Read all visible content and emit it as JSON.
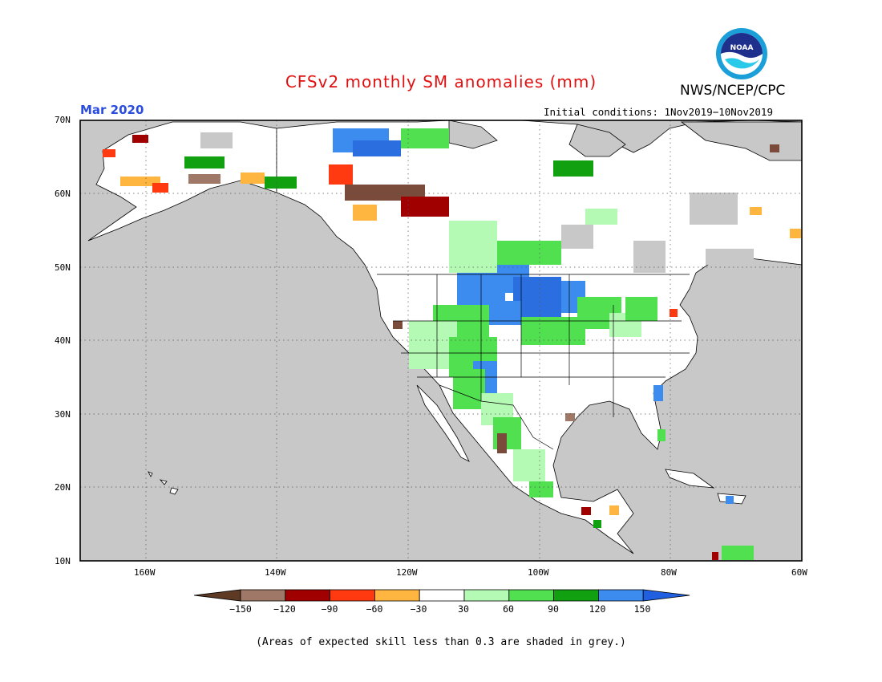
{
  "header": {
    "title": "CFSv2 monthly SM anomalies (mm)",
    "agency": "NWS/NCEP/CPC",
    "period": "Mar 2020",
    "initial_conditions": "Initial conditions: 1Nov2019−10Nov2019"
  },
  "logo": {
    "text": "NOAA"
  },
  "map": {
    "lat_labels": [
      "70N",
      "60N",
      "50N",
      "40N",
      "30N",
      "20N",
      "10N"
    ],
    "lon_labels": [
      "160W",
      "140W",
      "120W",
      "100W",
      "80W",
      "60W"
    ],
    "lon_range": [
      -170,
      -60
    ],
    "lat_range": [
      10,
      70
    ]
  },
  "colorbar": {
    "labels": [
      "−150",
      "−120",
      "−90",
      "−60",
      "−30",
      "30",
      "60",
      "90",
      "120",
      "150"
    ],
    "colors": [
      "#5e3a24",
      "#a07868",
      "#a00000",
      "#ff3a10",
      "#ffb640",
      "#ffffff",
      "#b4fab4",
      "#50e050",
      "#10a010",
      "#3c8cf0",
      "#2060e0"
    ]
  },
  "footnote": "(Areas of expected skill less than 0.3 are shaded in grey.)"
}
